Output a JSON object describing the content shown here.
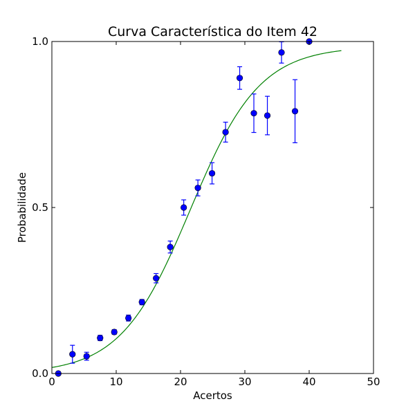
{
  "chart_data": {
    "type": "scatter",
    "title": "Curva Característica do Item 42",
    "xlabel": "Acertos",
    "ylabel": "Probabilidade",
    "xlim": [
      0,
      50
    ],
    "ylim": [
      0.0,
      1.0
    ],
    "xticks": [
      0,
      10,
      20,
      30,
      40,
      50
    ],
    "xtick_labels": [
      "0",
      "10",
      "20",
      "30",
      "40",
      "50"
    ],
    "yticks": [
      0.0,
      0.5,
      1.0
    ],
    "ytick_labels": [
      "0.0",
      "0.5",
      "1.0"
    ],
    "grid": false,
    "points": {
      "color": "#0000ff",
      "x": [
        1.0,
        3.2,
        5.4,
        7.5,
        9.7,
        11.9,
        14.0,
        16.2,
        18.4,
        20.5,
        22.7,
        24.9,
        27.0,
        29.2,
        31.4,
        33.5,
        35.7,
        37.8,
        40.0
      ],
      "y": [
        0.0,
        0.058,
        0.052,
        0.107,
        0.125,
        0.167,
        0.215,
        0.287,
        0.381,
        0.5,
        0.559,
        0.603,
        0.727,
        0.89,
        0.784,
        0.777,
        0.967,
        0.79,
        1.0
      ],
      "yerr_low": [
        0.0,
        0.027,
        0.012,
        0.008,
        0.007,
        0.009,
        0.008,
        0.014,
        0.018,
        0.023,
        0.024,
        0.032,
        0.03,
        0.034,
        0.058,
        0.058,
        0.032,
        0.095,
        0.0
      ],
      "yerr_high": [
        0.0,
        0.027,
        0.012,
        0.008,
        0.007,
        0.009,
        0.008,
        0.014,
        0.018,
        0.023,
        0.024,
        0.032,
        0.03,
        0.034,
        0.058,
        0.058,
        0.032,
        0.095,
        0.0
      ]
    },
    "curve": {
      "color": "#008000",
      "type": "logistic",
      "x_start": 0,
      "x_end": 45,
      "lower_asymptote": 0.0,
      "upper_asymptote": 0.985,
      "midpoint": 21.5,
      "slope": 0.185
    }
  }
}
